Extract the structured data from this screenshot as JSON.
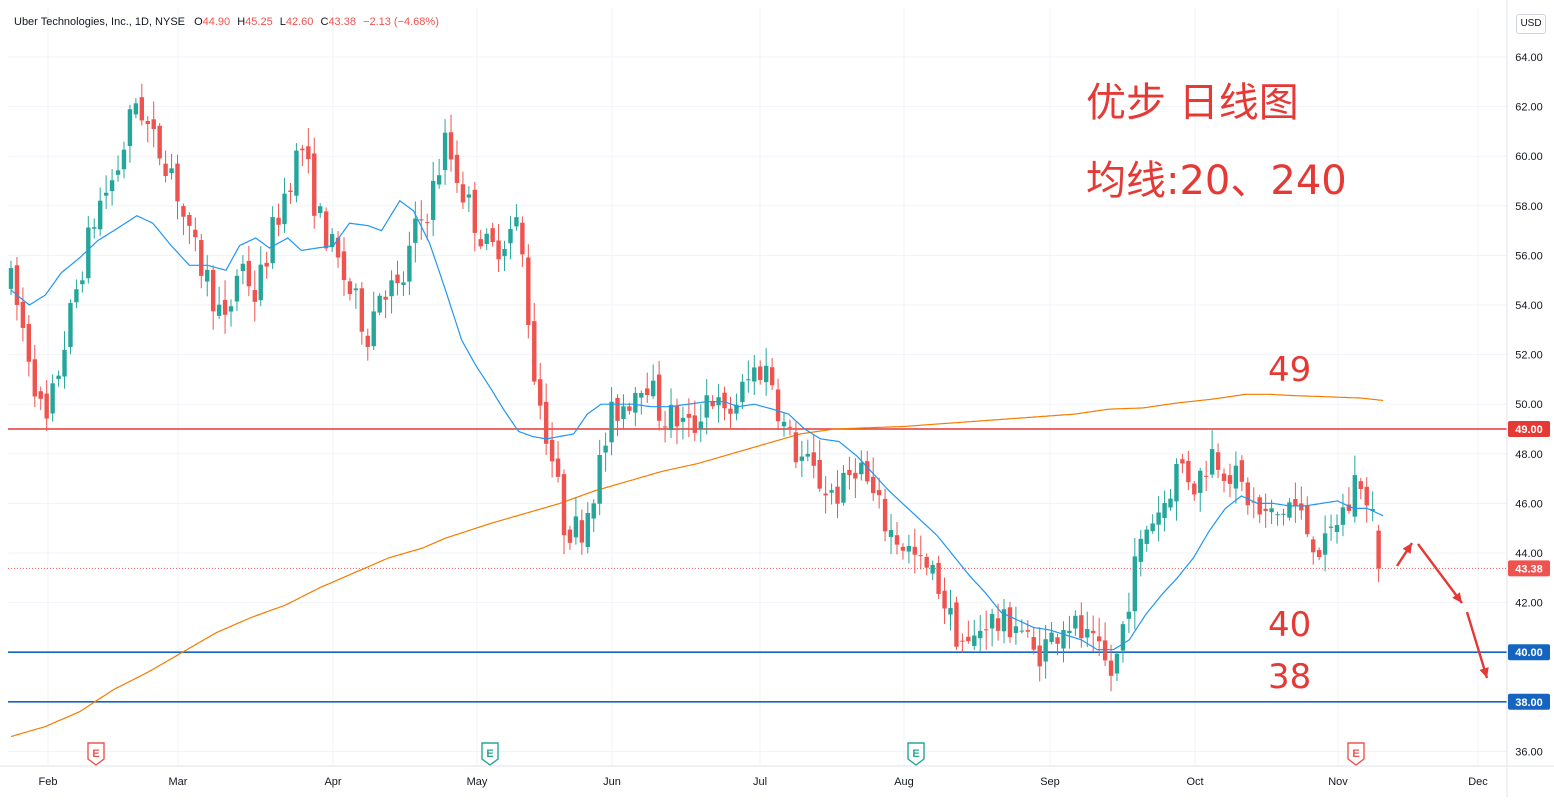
{
  "header": {
    "symbol": "Uber Technologies, Inc., 1D, NYSE",
    "o_label": "O",
    "o_value": "44.90",
    "h_label": "H",
    "h_value": "45.25",
    "l_label": "L",
    "l_value": "42.60",
    "c_label": "C",
    "c_value": "43.38",
    "change": "−2.13 (−4.68%)"
  },
  "currency_button": "USD",
  "annotations": {
    "title_line1": "优步 日线图",
    "title_line2": "均线:20、240",
    "level_49": "49",
    "level_40": "40",
    "level_38": "38"
  },
  "colors": {
    "up": "#26a69a",
    "down": "#ef5350",
    "ma20": "#2196f3",
    "ma240": "#f57c00",
    "line_49": "#e53935",
    "line_40_38": "#1565c0",
    "annotation": "#e53935"
  },
  "chart_data": {
    "type": "candlestick",
    "title": "",
    "y_axis": {
      "ticks": [
        "64.00",
        "62.00",
        "60.00",
        "58.00",
        "56.00",
        "54.00",
        "52.00",
        "50.00",
        "48.00",
        "46.00",
        "44.00",
        "42.00",
        "40.00",
        "38.00",
        "36.00"
      ],
      "range": [
        35.3,
        64.6
      ]
    },
    "x_axis": {
      "labels": [
        "Feb",
        "Mar",
        "Apr",
        "May",
        "Jun",
        "Jul",
        "Aug",
        "Sep",
        "Oct",
        "Nov",
        "Dec"
      ]
    },
    "price_labels": [
      {
        "value": 49.0,
        "text": "49.00",
        "color": "#e53935"
      },
      {
        "value": 43.38,
        "text": "43.38",
        "color": "#ef5350"
      },
      {
        "value": 40.0,
        "text": "40.00",
        "color": "#1565c0"
      },
      {
        "value": 38.0,
        "text": "38.00",
        "color": "#1565c0"
      }
    ],
    "horizontal_lines": [
      {
        "value": 49.0,
        "color": "#e53935",
        "style": "solid"
      },
      {
        "value": 40.0,
        "color": "#1565c0",
        "style": "solid"
      },
      {
        "value": 38.0,
        "color": "#1565c0",
        "style": "solid"
      },
      {
        "value": 43.38,
        "color": "#ef5350",
        "style": "dotted"
      }
    ],
    "earnings_markers": [
      {
        "month": "Feb",
        "color": "#ef5350"
      },
      {
        "month": "May",
        "color": "#26a69a"
      },
      {
        "month": "Aug",
        "color": "#26a69a"
      },
      {
        "month": "Nov",
        "color": "#ef5350"
      }
    ],
    "earnings_label": "E",
    "candle_anchors": [
      [
        0,
        54.9
      ],
      [
        8,
        52.0
      ],
      [
        15,
        48.9
      ],
      [
        22,
        51.9
      ],
      [
        30,
        55.2
      ],
      [
        38,
        58.0
      ],
      [
        46,
        59.3
      ],
      [
        55,
        62.4
      ],
      [
        62,
        60.6
      ],
      [
        70,
        59.6
      ],
      [
        78,
        56.6
      ],
      [
        86,
        55.0
      ],
      [
        94,
        53.0
      ],
      [
        100,
        55.9
      ],
      [
        107,
        54.3
      ],
      [
        113,
        56.5
      ],
      [
        121,
        58.9
      ],
      [
        127,
        60.5
      ],
      [
        134,
        57.7
      ],
      [
        141,
        56.1
      ],
      [
        148,
        54.6
      ],
      [
        156,
        52.9
      ],
      [
        162,
        54.9
      ],
      [
        170,
        54.4
      ],
      [
        176,
        56.8
      ],
      [
        183,
        58.1
      ],
      [
        190,
        60.6
      ],
      [
        197,
        58.7
      ],
      [
        203,
        57.4
      ],
      [
        209,
        56.1
      ],
      [
        216,
        56.8
      ],
      [
        222,
        57.3
      ],
      [
        229,
        51.1
      ],
      [
        236,
        48.1
      ],
      [
        242,
        45.1
      ],
      [
        249,
        44.9
      ],
      [
        256,
        47.0
      ],
      [
        263,
        49.6
      ],
      [
        270,
        50.2
      ],
      [
        277,
        51.3
      ],
      [
        284,
        49.6
      ],
      [
        291,
        49.4
      ],
      [
        298,
        48.9
      ],
      [
        305,
        50.6
      ],
      [
        312,
        49.4
      ],
      [
        319,
        50.4
      ],
      [
        326,
        51.5
      ],
      [
        332,
        51.3
      ],
      [
        337,
        49.3
      ],
      [
        343,
        48.1
      ],
      [
        350,
        47.3
      ],
      [
        357,
        46.5
      ],
      [
        363,
        46.4
      ],
      [
        370,
        47.8
      ],
      [
        377,
        46.2
      ],
      [
        384,
        44.9
      ],
      [
        391,
        44.3
      ],
      [
        398,
        43.4
      ],
      [
        405,
        42.9
      ],
      [
        412,
        41.0
      ],
      [
        419,
        40.1
      ],
      [
        426,
        41.4
      ],
      [
        433,
        41.0
      ],
      [
        440,
        41.3
      ],
      [
        447,
        39.9
      ],
      [
        454,
        40.4
      ],
      [
        461,
        41.4
      ],
      [
        468,
        40.7
      ],
      [
        475,
        39.9
      ],
      [
        482,
        39.0
      ],
      [
        490,
        42.9
      ],
      [
        497,
        45.2
      ],
      [
        504,
        46.0
      ],
      [
        511,
        47.7
      ],
      [
        518,
        46.7
      ],
      [
        525,
        48.1
      ],
      [
        532,
        47.4
      ],
      [
        539,
        46.5
      ],
      [
        546,
        45.5
      ],
      [
        553,
        45.4
      ],
      [
        560,
        46.1
      ],
      [
        567,
        44.9
      ],
      [
        574,
        44.0
      ],
      [
        581,
        45.6
      ],
      [
        586,
        46.0
      ],
      [
        589,
        47.7
      ],
      [
        592,
        45.9
      ],
      [
        596,
        45.2
      ],
      [
        600,
        43.38
      ]
    ],
    "ma20": {
      "name": "",
      "anchors": [
        [
          0,
          54.6
        ],
        [
          8,
          54.0
        ],
        [
          15,
          54.4
        ],
        [
          22,
          55.3
        ],
        [
          30,
          55.9
        ],
        [
          38,
          56.6
        ],
        [
          45,
          57.0
        ],
        [
          55,
          57.6
        ],
        [
          62,
          57.3
        ],
        [
          70,
          56.4
        ],
        [
          78,
          55.6
        ],
        [
          86,
          55.6
        ],
        [
          94,
          55.4
        ],
        [
          100,
          56.4
        ],
        [
          107,
          56.7
        ],
        [
          113,
          56.3
        ],
        [
          121,
          56.7
        ],
        [
          127,
          56.2
        ],
        [
          134,
          56.3
        ],
        [
          141,
          56.4
        ],
        [
          148,
          57.3
        ],
        [
          156,
          57.2
        ],
        [
          162,
          57.0
        ],
        [
          170,
          58.2
        ],
        [
          176,
          57.8
        ],
        [
          183,
          56.5
        ],
        [
          190,
          54.6
        ],
        [
          197,
          52.6
        ],
        [
          203,
          51.6
        ],
        [
          210,
          50.6
        ],
        [
          216,
          49.7
        ],
        [
          222,
          48.9
        ],
        [
          228,
          48.7
        ],
        [
          234,
          48.6
        ],
        [
          240,
          48.7
        ],
        [
          246,
          48.8
        ],
        [
          252,
          49.6
        ],
        [
          258,
          50.0
        ],
        [
          264,
          50.0
        ],
        [
          272,
          50.0
        ],
        [
          280,
          49.9
        ],
        [
          288,
          49.9
        ],
        [
          296,
          50.0
        ],
        [
          304,
          50.1
        ],
        [
          312,
          50.1
        ],
        [
          318,
          49.9
        ],
        [
          325,
          50.0
        ],
        [
          333,
          49.8
        ],
        [
          340,
          49.6
        ],
        [
          347,
          49.0
        ],
        [
          354,
          48.6
        ],
        [
          362,
          48.5
        ],
        [
          370,
          47.9
        ],
        [
          377,
          47.2
        ],
        [
          384,
          46.5
        ],
        [
          391,
          45.9
        ],
        [
          398,
          45.3
        ],
        [
          405,
          44.7
        ],
        [
          412,
          43.9
        ],
        [
          419,
          43.1
        ],
        [
          426,
          42.4
        ],
        [
          433,
          41.6
        ],
        [
          440,
          41.3
        ],
        [
          447,
          41.0
        ],
        [
          454,
          40.9
        ],
        [
          461,
          40.7
        ],
        [
          468,
          40.5
        ],
        [
          475,
          40.1
        ],
        [
          482,
          40.1
        ],
        [
          489,
          40.5
        ],
        [
          496,
          41.5
        ],
        [
          503,
          42.3
        ],
        [
          510,
          43.0
        ],
        [
          517,
          43.8
        ],
        [
          524,
          44.9
        ],
        [
          531,
          45.8
        ],
        [
          538,
          46.3
        ],
        [
          545,
          46.0
        ],
        [
          552,
          46.0
        ],
        [
          559,
          45.9
        ],
        [
          566,
          45.9
        ],
        [
          573,
          46.0
        ],
        [
          580,
          46.1
        ],
        [
          587,
          45.8
        ],
        [
          593,
          45.8
        ],
        [
          600,
          45.5
        ]
      ]
    },
    "ma240": {
      "name": "",
      "anchors": [
        [
          0,
          36.6
        ],
        [
          15,
          37.0
        ],
        [
          30,
          37.6
        ],
        [
          45,
          38.5
        ],
        [
          60,
          39.2
        ],
        [
          75,
          40.0
        ],
        [
          90,
          40.8
        ],
        [
          105,
          41.4
        ],
        [
          120,
          41.9
        ],
        [
          135,
          42.6
        ],
        [
          150,
          43.2
        ],
        [
          165,
          43.8
        ],
        [
          180,
          44.2
        ],
        [
          190,
          44.6
        ],
        [
          200,
          44.9
        ],
        [
          210,
          45.2
        ],
        [
          225,
          45.6
        ],
        [
          240,
          46.0
        ],
        [
          255,
          46.5
        ],
        [
          270,
          46.9
        ],
        [
          285,
          47.3
        ],
        [
          300,
          47.6
        ],
        [
          315,
          48.0
        ],
        [
          330,
          48.4
        ],
        [
          345,
          48.8
        ],
        [
          360,
          49.0
        ],
        [
          375,
          49.05
        ],
        [
          390,
          49.1
        ],
        [
          405,
          49.2
        ],
        [
          420,
          49.3
        ],
        [
          435,
          49.4
        ],
        [
          450,
          49.5
        ],
        [
          465,
          49.6
        ],
        [
          480,
          49.8
        ],
        [
          495,
          49.85
        ],
        [
          510,
          50.05
        ],
        [
          525,
          50.2
        ],
        [
          540,
          50.4
        ],
        [
          550,
          50.4
        ],
        [
          560,
          50.35
        ],
        [
          575,
          50.3
        ],
        [
          590,
          50.25
        ],
        [
          600,
          50.15
        ]
      ]
    }
  }
}
